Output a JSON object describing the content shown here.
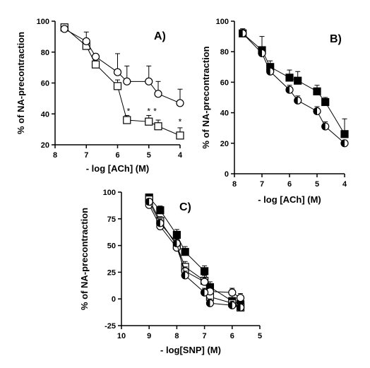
{
  "chart_data": [
    {
      "type": "scatter",
      "panel_label": "A)",
      "xlabel": "- log [ACh] (M)",
      "ylabel": "% of NA-precontraction",
      "xlim": [
        8,
        4
      ],
      "ylim": [
        20,
        100
      ],
      "xticks": [
        "8",
        "7",
        "6",
        "5",
        "4"
      ],
      "yticks": [
        "20",
        "40",
        "60",
        "80",
        "100"
      ],
      "grid": false,
      "series": [
        {
          "marker": "open-square",
          "x": [
            7.7,
            7.0,
            6.7,
            6.0,
            5.7,
            5.0,
            4.7,
            4.0
          ],
          "y": [
            96,
            84,
            72,
            58,
            36,
            35,
            32,
            26
          ],
          "err": [
            0,
            0,
            0,
            4,
            3,
            4,
            4,
            5
          ]
        },
        {
          "marker": "open-circle",
          "x": [
            7.7,
            7.0,
            6.7,
            6.0,
            5.7,
            5.0,
            4.7,
            4.0
          ],
          "y": [
            95,
            87,
            77,
            67,
            61,
            61,
            53,
            47
          ],
          "err": [
            0,
            6,
            0,
            12,
            10,
            10,
            8,
            9
          ]
        }
      ],
      "annotations": [
        {
          "text": "*",
          "x": 5.65,
          "y": 40
        },
        {
          "text": "*",
          "x": 5.0,
          "y": 40
        },
        {
          "text": "*",
          "x": 4.8,
          "y": 40
        },
        {
          "text": "*",
          "x": 4.0,
          "y": 33
        }
      ]
    },
    {
      "type": "scatter",
      "panel_label": "B)",
      "xlabel": "- log [ACh] (M)",
      "ylabel": "% of NA-precontraction",
      "xlim": [
        8,
        4
      ],
      "ylim": [
        0,
        100
      ],
      "xticks": [
        "8",
        "7",
        "6",
        "5",
        "4"
      ],
      "yticks": [
        "0",
        "20",
        "40",
        "60",
        "80",
        "100"
      ],
      "grid": false,
      "series": [
        {
          "marker": "filled-square",
          "x": [
            7.7,
            7.0,
            6.7,
            6.0,
            5.7,
            5.0,
            4.7,
            4.0
          ],
          "y": [
            92,
            81,
            70,
            63,
            61,
            54,
            47,
            26
          ],
          "err": [
            3,
            9,
            4,
            5,
            6,
            4,
            3,
            10
          ]
        },
        {
          "marker": "half-circle",
          "x": [
            7.7,
            7.0,
            6.7,
            6.0,
            5.7,
            5.0,
            4.7,
            4.0
          ],
          "y": [
            92,
            79,
            67,
            55,
            48,
            41,
            31,
            20
          ],
          "err": [
            3,
            3,
            3,
            3,
            3,
            3,
            3,
            2
          ]
        }
      ]
    },
    {
      "type": "scatter",
      "panel_label": "C)",
      "xlabel": "- log[SNP] (M)",
      "ylabel": "% of NA-precontraction",
      "xlim": [
        10,
        5
      ],
      "ylim": [
        -25,
        100
      ],
      "xticks": [
        "10",
        "9",
        "8",
        "7",
        "6",
        "5"
      ],
      "yticks": [
        "-25",
        "0",
        "25",
        "50",
        "75",
        "100"
      ],
      "grid": false,
      "series": [
        {
          "marker": "filled-square",
          "x": [
            9.0,
            8.6,
            8.0,
            7.7,
            7.0,
            6.8,
            6.0,
            5.7
          ],
          "y": [
            95,
            83,
            60,
            44,
            26,
            11,
            -2,
            -5
          ],
          "err": [
            0,
            4,
            5,
            5,
            5,
            5,
            5,
            5
          ]
        },
        {
          "marker": "open-square",
          "x": [
            9.0,
            8.6,
            8.0,
            7.7,
            7.0,
            6.8,
            6.0,
            5.7
          ],
          "y": [
            93,
            73,
            50,
            30,
            17,
            2,
            -4,
            -8
          ],
          "err": [
            0,
            4,
            5,
            5,
            5,
            5,
            5,
            5
          ]
        },
        {
          "marker": "open-circle",
          "x": [
            9.0,
            8.6,
            8.0,
            7.7,
            7.0,
            6.8,
            6.0,
            5.7
          ],
          "y": [
            88,
            68,
            48,
            26,
            16,
            7,
            6,
            1
          ],
          "err": [
            0,
            4,
            5,
            4,
            4,
            4,
            4,
            4
          ]
        },
        {
          "marker": "half-circle",
          "x": [
            9.0,
            8.6,
            8.0,
            7.7,
            7.0,
            6.8,
            6.0,
            5.7
          ],
          "y": [
            91,
            71,
            52,
            22,
            6,
            -4,
            -6,
            -8
          ],
          "err": [
            0,
            4,
            4,
            4,
            4,
            4,
            4,
            4
          ]
        }
      ]
    }
  ]
}
